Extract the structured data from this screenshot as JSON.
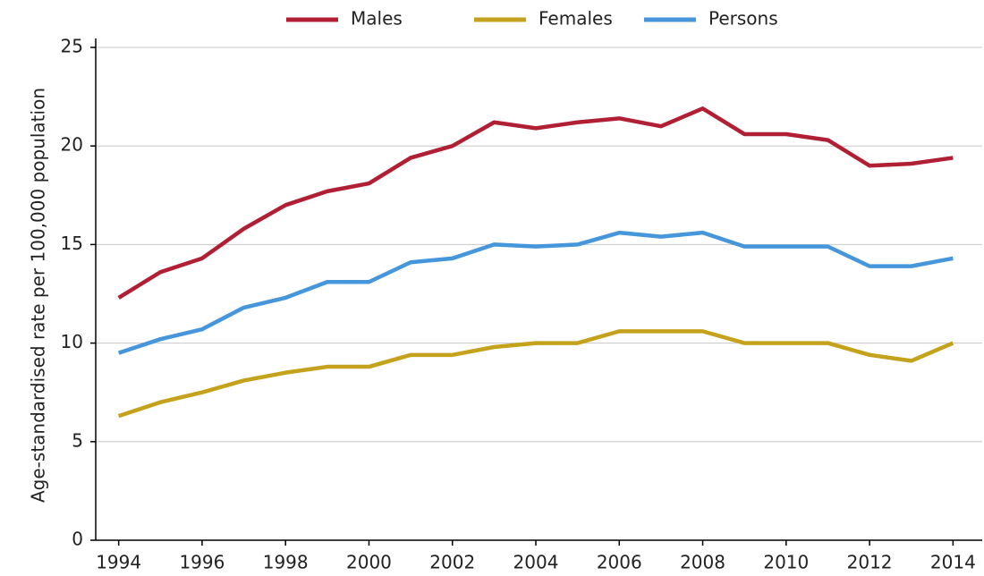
{
  "chart_data": {
    "type": "line",
    "y_label": "Age-standardised rate per 100,000 population",
    "x": [
      1994,
      1995,
      1996,
      1997,
      1998,
      1999,
      2000,
      2001,
      2002,
      2003,
      2004,
      2005,
      2006,
      2007,
      2008,
      2009,
      2010,
      2011,
      2012,
      2013,
      2014
    ],
    "series": [
      {
        "name": "Males",
        "color": "#b01f34",
        "values": [
          12.3,
          13.6,
          14.3,
          15.8,
          17.0,
          17.7,
          18.1,
          19.4,
          20.0,
          21.2,
          20.9,
          21.2,
          21.4,
          21.0,
          21.9,
          20.6,
          20.6,
          20.3,
          19.0,
          19.1,
          19.4
        ]
      },
      {
        "name": "Females",
        "color": "#c5a21c",
        "values": [
          6.3,
          7.0,
          7.5,
          8.1,
          8.5,
          8.8,
          8.8,
          9.4,
          9.4,
          9.8,
          10.0,
          10.0,
          10.6,
          10.6,
          10.6,
          10.0,
          10.0,
          10.0,
          9.4,
          9.1,
          10.0
        ]
      },
      {
        "name": "Persons",
        "color": "#4696db",
        "values": [
          9.5,
          10.2,
          10.7,
          11.8,
          12.3,
          13.1,
          13.1,
          14.1,
          14.3,
          15.0,
          14.9,
          15.0,
          15.6,
          15.4,
          15.6,
          14.9,
          14.9,
          14.9,
          13.9,
          13.9,
          14.3
        ]
      }
    ],
    "xlim": [
      1993.45,
      2014.7
    ],
    "xticks": [
      1994,
      1996,
      1998,
      2000,
      2002,
      2004,
      2006,
      2008,
      2010,
      2012,
      2014
    ],
    "ylim": [
      0,
      25
    ],
    "yticks": [
      0,
      5,
      10,
      15,
      20,
      25
    ],
    "grid": true,
    "legend": "top"
  }
}
